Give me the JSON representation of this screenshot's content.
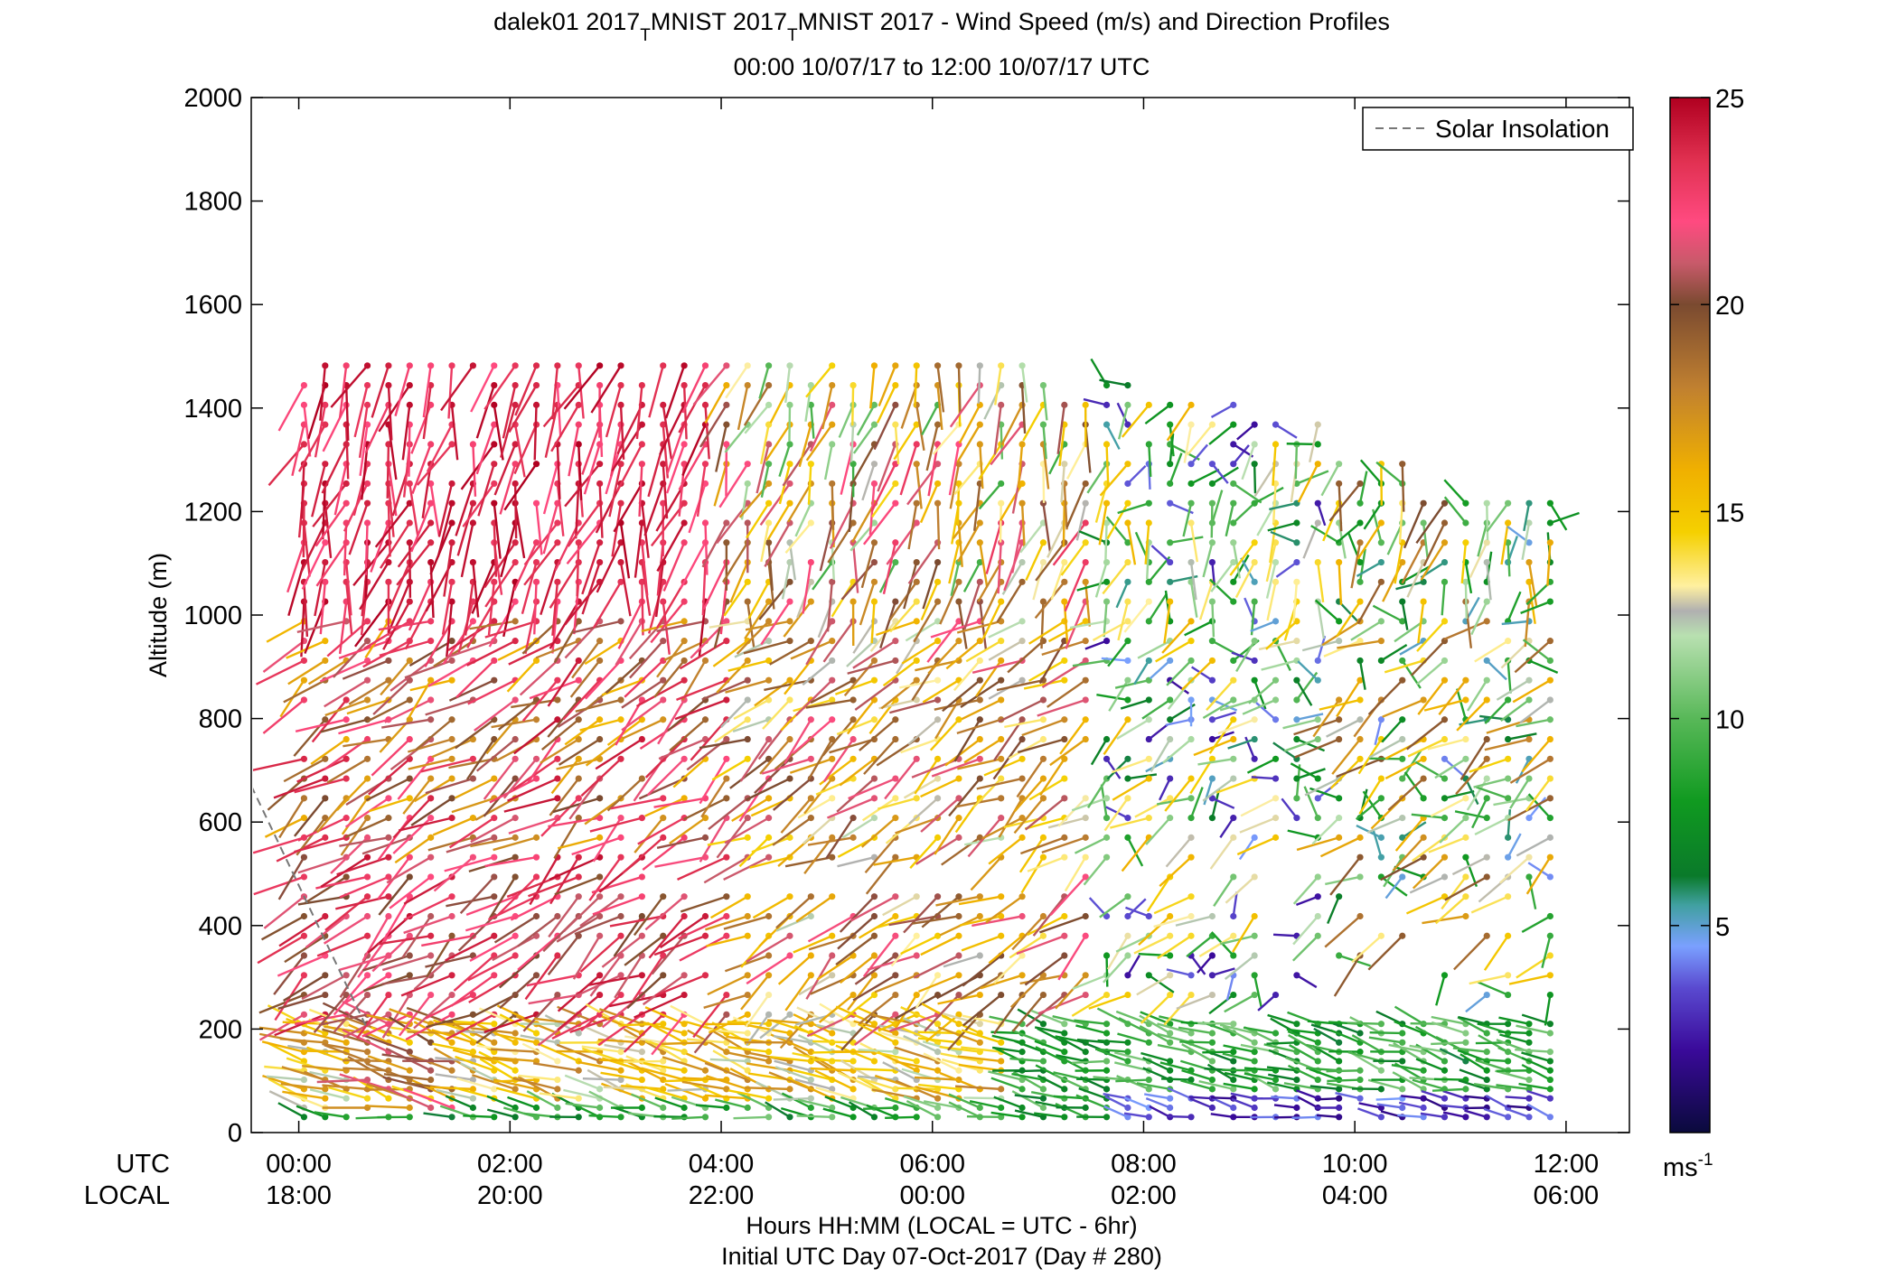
{
  "chart_data": {
    "type": "wind-barb-profile",
    "title_main": "dalek01 2017",
    "title_sub1": "T",
    "title_mid": "MNIST 2017",
    "title_sub2": "T",
    "title_end": "MNIST 2017 - Wind Speed (m/s) and Direction Profiles",
    "subtitle": "00:00 10/07/17 to 12:00 10/07/17  UTC",
    "ylabel": "Altitude (m)",
    "xlabel": "Hours HH:MM  (LOCAL = UTC - 6hr)",
    "xlabel2": "Initial UTC Day 07-Oct-2017 (Day # 280)",
    "row_label_utc": "UTC",
    "row_label_local": "LOCAL",
    "xlim_hours": [
      -0.45,
      12.6
    ],
    "ylim": [
      0,
      2000
    ],
    "yticks": [
      "0",
      "200",
      "400",
      "600",
      "800",
      "1000",
      "1200",
      "1400",
      "1600",
      "1800",
      "2000"
    ],
    "xticks_utc": [
      "00:00",
      "02:00",
      "04:00",
      "06:00",
      "08:00",
      "10:00",
      "12:00"
    ],
    "xticks_local": [
      "18:00",
      "20:00",
      "22:00",
      "00:00",
      "02:00",
      "04:00",
      "06:00"
    ],
    "legend_entry": "Solar Insolation",
    "legend_placement": "top-right",
    "solar_insolation": {
      "x": [
        -0.45,
        0.65
      ],
      "y": [
        670,
        200
      ]
    },
    "colorbar": {
      "range": [
        0,
        25
      ],
      "ticks": [
        "5",
        "10",
        "15",
        "20",
        "25"
      ],
      "unit_base": "ms",
      "unit_exp": "-1",
      "stops": [
        {
          "v": 0,
          "c": "#0a0a3c"
        },
        {
          "v": 2,
          "c": "#3a0a9a"
        },
        {
          "v": 3.5,
          "c": "#5a4ad0"
        },
        {
          "v": 4.5,
          "c": "#7aa0ff"
        },
        {
          "v": 5.5,
          "c": "#40a0a0"
        },
        {
          "v": 6.2,
          "c": "#0a7a2a"
        },
        {
          "v": 8,
          "c": "#109a20"
        },
        {
          "v": 10,
          "c": "#58b858"
        },
        {
          "v": 12,
          "c": "#b8e0b0"
        },
        {
          "v": 12.6,
          "c": "#b0b0b0"
        },
        {
          "v": 13.2,
          "c": "#fff0a0"
        },
        {
          "v": 14.5,
          "c": "#f5d000"
        },
        {
          "v": 16,
          "c": "#f0b000"
        },
        {
          "v": 18,
          "c": "#c08030"
        },
        {
          "v": 20,
          "c": "#7a4a30"
        },
        {
          "v": 21,
          "c": "#c85a6a"
        },
        {
          "v": 22,
          "c": "#ff4a80"
        },
        {
          "v": 23.5,
          "c": "#e03050"
        },
        {
          "v": 25,
          "c": "#b00020"
        }
      ]
    }
  }
}
